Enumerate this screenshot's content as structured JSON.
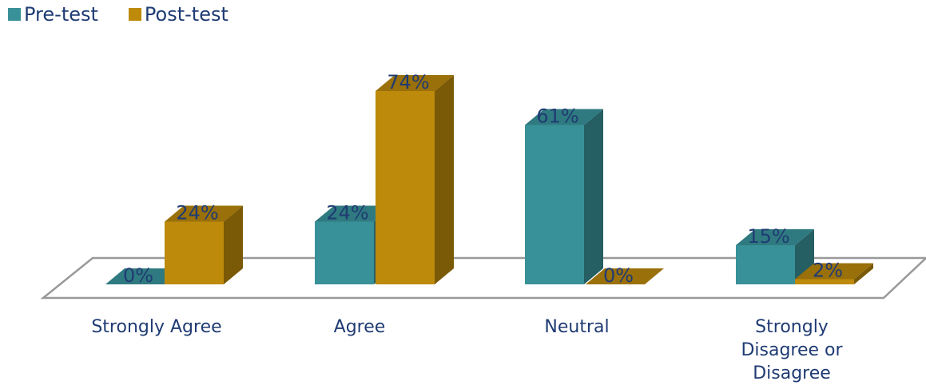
{
  "chart_data": {
    "type": "bar",
    "categories": [
      "Strongly Agree",
      "Agree",
      "Neutral",
      "Strongly\nDisagree or\nDisagree"
    ],
    "series": [
      {
        "name": "Pre-test",
        "values": [
          0,
          24,
          61,
          15
        ],
        "labels": [
          "0%",
          "24%",
          "61%",
          "15%"
        ],
        "color": "#389198"
      },
      {
        "name": "Post-test",
        "values": [
          24,
          74,
          0,
          2
        ],
        "labels": [
          "24%",
          "74%",
          "0%",
          "2%"
        ],
        "color": "#bd8a0b"
      }
    ],
    "ylim": [
      0,
      100
    ],
    "legend_position": "top-left",
    "grid": false
  },
  "colors": {
    "label_text": "#1f3b73",
    "floor_line": "#999999",
    "pre_side": "#255f63",
    "pre_top": "#2f7a80",
    "post_side": "#7a5a06",
    "post_top": "#9a700a"
  }
}
